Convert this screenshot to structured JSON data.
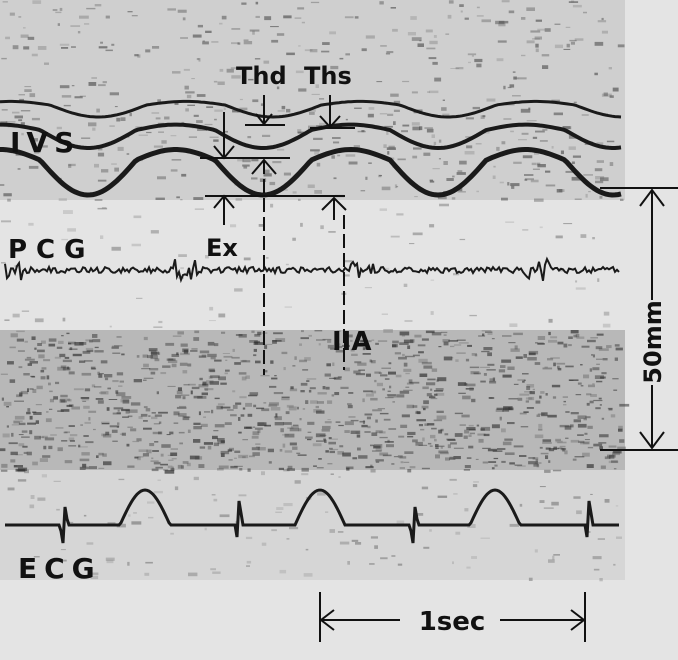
{
  "labels": {
    "ivs": "IVS",
    "thd": "Thd",
    "ths": "Ths",
    "ex": "Ex",
    "pcg": "PCG",
    "iia": "IIA",
    "scale_depth": "50mm",
    "ecg": "ECG",
    "scale_time": "1sec"
  }
}
